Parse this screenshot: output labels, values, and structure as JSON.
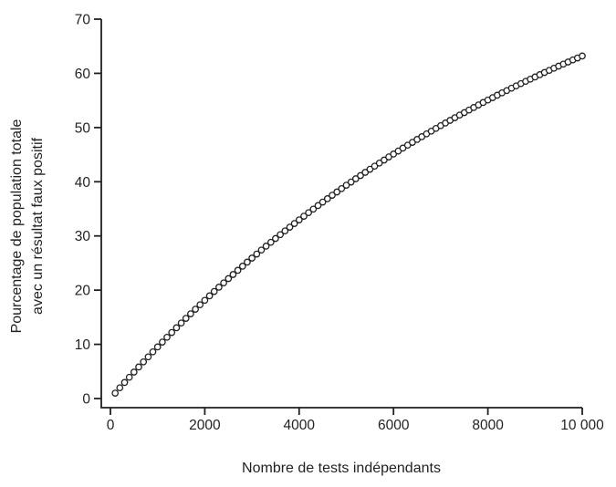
{
  "figure": {
    "background": "#ffffff",
    "ink_color": "#231f20"
  },
  "chart_data": {
    "type": "scatter",
    "title": "",
    "xlabel": "Nombre de tests indépendants",
    "ylabel_lines": [
      "Pourcentage de population totale",
      "avec un résultat faux positif"
    ],
    "xlim": [
      0,
      10000
    ],
    "ylim": [
      0,
      70
    ],
    "x_ticks": [
      0,
      2000,
      4000,
      6000,
      8000,
      10000
    ],
    "x_tick_labels": [
      "0",
      "2000",
      "4000",
      "6000",
      "8000",
      "10 000"
    ],
    "y_ticks": [
      0,
      10,
      20,
      30,
      40,
      50,
      60,
      70
    ],
    "y_tick_labels": [
      "0",
      "10",
      "20",
      "30",
      "40",
      "50",
      "60",
      "70"
    ],
    "grid": false,
    "legend": null,
    "marker": {
      "shape": "open-circle",
      "radius": 3.2,
      "stroke": "#231f20",
      "fill": "#ffffff",
      "stroke_width": 1.3
    },
    "x": [
      100,
      200,
      300,
      400,
      500,
      600,
      700,
      800,
      900,
      1000,
      1100,
      1200,
      1300,
      1400,
      1500,
      1600,
      1700,
      1800,
      1900,
      2000,
      2100,
      2200,
      2300,
      2400,
      2500,
      2600,
      2700,
      2800,
      2900,
      3000,
      3100,
      3200,
      3300,
      3400,
      3500,
      3600,
      3700,
      3800,
      3900,
      4000,
      4100,
      4200,
      4300,
      4400,
      4500,
      4600,
      4700,
      4800,
      4900,
      5000,
      5100,
      5200,
      5300,
      5400,
      5500,
      5600,
      5700,
      5800,
      5900,
      6000,
      6100,
      6200,
      6300,
      6400,
      6500,
      6600,
      6700,
      6800,
      6900,
      7000,
      7100,
      7200,
      7300,
      7400,
      7500,
      7600,
      7700,
      7800,
      7900,
      8000,
      8100,
      8200,
      8300,
      8400,
      8500,
      8600,
      8700,
      8800,
      8900,
      9000,
      9100,
      9200,
      9300,
      9400,
      9500,
      9600,
      9700,
      9800,
      9900,
      10000
    ],
    "y": [
      1.0,
      1.98,
      2.96,
      3.92,
      4.88,
      5.82,
      6.76,
      7.69,
      8.61,
      9.52,
      10.42,
      11.31,
      12.19,
      13.06,
      13.93,
      14.79,
      15.63,
      16.47,
      17.3,
      18.13,
      18.94,
      19.75,
      20.55,
      21.34,
      22.12,
      22.89,
      23.66,
      24.42,
      25.17,
      25.92,
      26.66,
      27.39,
      28.11,
      28.82,
      29.53,
      30.23,
      30.93,
      31.61,
      32.29,
      32.97,
      33.63,
      34.3,
      34.95,
      35.6,
      36.24,
      36.87,
      37.5,
      38.12,
      38.74,
      39.35,
      39.95,
      40.55,
      41.14,
      41.73,
      42.31,
      42.88,
      43.45,
      44.01,
      44.57,
      45.12,
      45.66,
      46.21,
      46.74,
      47.27,
      47.8,
      48.31,
      48.83,
      49.34,
      49.84,
      50.34,
      50.84,
      51.33,
      51.81,
      52.29,
      52.76,
      53.23,
      53.7,
      54.16,
      54.62,
      55.07,
      55.51,
      55.96,
      56.4,
      56.83,
      57.26,
      57.68,
      58.1,
      58.52,
      58.93,
      59.34,
      59.75,
      60.15,
      60.54,
      60.94,
      61.33,
      61.71,
      62.09,
      62.47,
      62.84,
      63.21
    ]
  }
}
